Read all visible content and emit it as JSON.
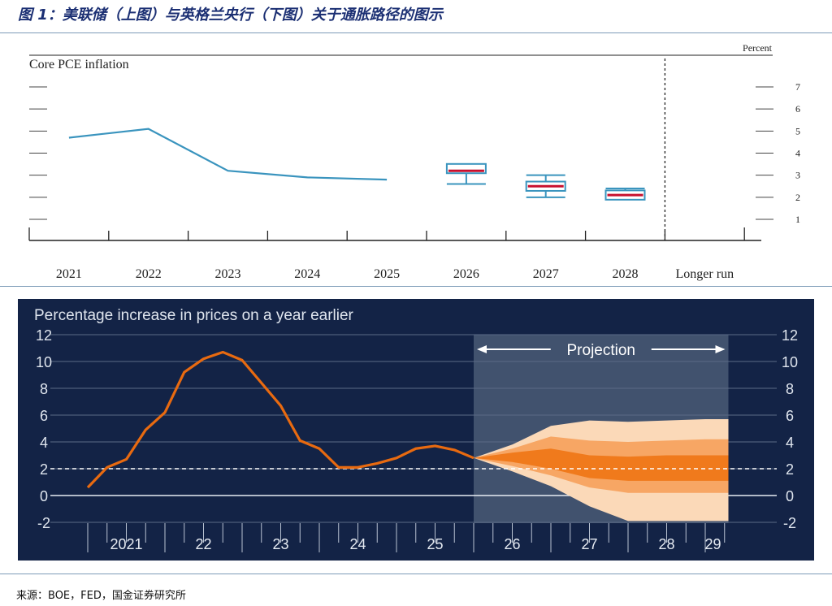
{
  "figure_title": "图 1：美联储（上图）与英格兰央行（下图）关于通胀路径的图示",
  "source": "来源：BOE，FED，国金证券研究所",
  "colors": {
    "fed_line": "#3a94be",
    "fed_median": "#c8102e",
    "boe_bg": "#132346",
    "boe_line": "#e86a10",
    "fan_light": "#fbd9b8",
    "fan_mid": "#f7a664",
    "fan_dark": "#f07a1c",
    "projection_shade": "#4a5a75"
  },
  "chart_data": [
    {
      "type": "line",
      "title": "Core PCE inflation",
      "unit_label": "Percent",
      "categories": [
        "2021",
        "2022",
        "2023",
        "2024",
        "2025",
        "2026",
        "2027",
        "2028",
        "Longer run"
      ],
      "yticks": [
        1,
        2,
        3,
        4,
        5,
        6,
        7
      ],
      "ylim": [
        0,
        7.5
      ],
      "series": [
        {
          "values": [
            4.7,
            5.1,
            3.2,
            2.9,
            2.8,
            null,
            null,
            null,
            null
          ]
        }
      ],
      "projections": [
        {
          "category": "2026",
          "low": 2.6,
          "high": 3.5,
          "central_low": 3.2,
          "central_high": 3.4,
          "median": 3.2
        },
        {
          "category": "2027",
          "low": 2.0,
          "high": 3.0,
          "central_low": 2.4,
          "central_high": 2.6,
          "median": 2.5
        },
        {
          "category": "2028",
          "low": 2.0,
          "high": 2.4,
          "central_low": 2.0,
          "central_high": 2.2,
          "median": 2.1
        }
      ]
    },
    {
      "type": "line",
      "title": "Percentage increase in prices on a year earlier",
      "annotation": "Projection",
      "x_tick_labels": [
        "2021",
        "22",
        "23",
        "24",
        "25",
        "26",
        "27",
        "28",
        "29"
      ],
      "yticks": [
        -2,
        0,
        2,
        4,
        6,
        8,
        10,
        12
      ],
      "ylim": [
        -2,
        12
      ],
      "target": 2,
      "series": [
        {
          "x": [
            2021.0,
            2021.25,
            2021.5,
            2021.75,
            2022.0,
            2022.25,
            2022.5,
            2022.75,
            2023.0,
            2023.25,
            2023.5,
            2023.75,
            2024.0,
            2024.25,
            2024.5,
            2024.75,
            2025.0,
            2025.25,
            2025.5,
            2025.75,
            2026.0
          ],
          "values": [
            0.6,
            2.1,
            2.7,
            4.9,
            6.2,
            9.2,
            10.2,
            10.7,
            10.1,
            8.4,
            6.7,
            4.1,
            3.5,
            2.1,
            2.1,
            2.4,
            2.8,
            3.5,
            3.7,
            3.4,
            2.8
          ]
        }
      ],
      "fan": {
        "x": [
          2026.0,
          2026.5,
          2027.0,
          2027.5,
          2028.0,
          2028.5,
          2029.0,
          2029.3
        ],
        "bands": [
          {
            "name": "outer",
            "lower": [
              2.8,
              1.8,
              0.7,
              -0.8,
              -1.9,
              -1.9,
              -1.9,
              -1.9
            ],
            "upper": [
              2.8,
              3.8,
              5.2,
              5.6,
              5.5,
              5.6,
              5.7,
              5.7
            ]
          },
          {
            "name": "middle",
            "lower": [
              2.8,
              2.2,
              1.5,
              0.6,
              0.2,
              0.2,
              0.2,
              0.2
            ],
            "upper": [
              2.8,
              3.5,
              4.4,
              4.1,
              4.0,
              4.1,
              4.2,
              4.2
            ]
          },
          {
            "name": "inner",
            "lower": [
              2.8,
              2.5,
              2.0,
              1.3,
              1.1,
              1.1,
              1.1,
              1.1
            ],
            "upper": [
              2.8,
              3.2,
              3.5,
              3.0,
              2.9,
              3.0,
              3.0,
              3.0
            ]
          }
        ]
      }
    }
  ]
}
